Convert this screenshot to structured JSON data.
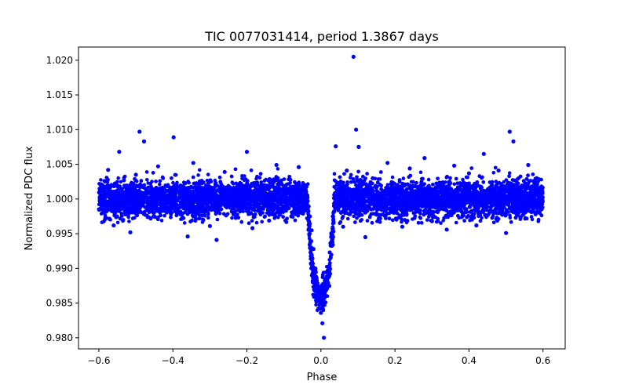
{
  "chart_data": {
    "type": "scatter",
    "title": "TIC 0077031414, period 1.3867 days",
    "xlabel": "Phase",
    "ylabel": "Normalized PDC flux",
    "xlim": [
      -0.655,
      0.66
    ],
    "ylim": [
      0.9784,
      1.0219
    ],
    "xticks": [
      -0.6,
      -0.4,
      -0.2,
      0.0,
      0.2,
      0.4,
      0.6
    ],
    "xtick_labels": [
      "−0.6",
      "−0.4",
      "−0.2",
      "0.0",
      "0.2",
      "0.4",
      "0.6"
    ],
    "yticks": [
      0.98,
      0.985,
      0.99,
      0.995,
      1.0,
      1.005,
      1.01,
      1.015,
      1.02
    ],
    "ytick_labels": [
      "0.980",
      "0.985",
      "0.990",
      "0.995",
      "1.000",
      "1.005",
      "1.010",
      "1.015",
      "1.020"
    ],
    "grid": false,
    "legend": "none",
    "marker_color": "#0000ff",
    "series": [
      {
        "description_note": "",
        "points": [
          [
            -0.598,
            1.0015
          ],
          [
            -0.59,
            0.9985
          ],
          [
            -0.575,
            1.0042
          ],
          [
            -0.56,
            0.9962
          ],
          [
            -0.545,
            1.0068
          ],
          [
            -0.53,
            1.0008
          ],
          [
            -0.515,
            0.9952
          ],
          [
            -0.5,
            1.0035
          ],
          [
            -0.49,
            1.0097
          ],
          [
            -0.478,
            1.0083
          ],
          [
            -0.46,
            0.9972
          ],
          [
            -0.44,
            1.0047
          ],
          [
            -0.42,
            0.999
          ],
          [
            -0.398,
            1.0089
          ],
          [
            -0.38,
            0.9978
          ],
          [
            -0.36,
            0.9946
          ],
          [
            -0.345,
            1.0052
          ],
          [
            -0.32,
            1.0004
          ],
          [
            -0.3,
            0.9961
          ],
          [
            -0.282,
            0.9941
          ],
          [
            -0.26,
            1.0039
          ],
          [
            -0.24,
            1.0012
          ],
          [
            -0.22,
            0.9986
          ],
          [
            -0.2,
            1.0068
          ],
          [
            -0.185,
            0.9958
          ],
          [
            -0.16,
            1.0021
          ],
          [
            -0.14,
            0.9969
          ],
          [
            -0.12,
            1.0049
          ],
          [
            -0.1,
            1.0003
          ],
          [
            -0.08,
            0.9975
          ],
          [
            -0.06,
            1.0046
          ],
          [
            -0.04,
            0.9988
          ],
          [
            -0.035,
            0.999
          ],
          [
            -0.03,
            0.9975
          ],
          [
            -0.025,
            0.9955
          ],
          [
            -0.02,
            0.9928
          ],
          [
            -0.015,
            0.99
          ],
          [
            -0.012,
            0.9882
          ],
          [
            -0.008,
            0.9865
          ],
          [
            -0.004,
            0.9842
          ],
          [
            0.0,
            0.9836
          ],
          [
            0.004,
            0.9821
          ],
          [
            0.008,
            0.98
          ],
          [
            0.012,
            0.9851
          ],
          [
            0.016,
            0.9878
          ],
          [
            0.02,
            0.9901
          ],
          [
            0.024,
            0.9923
          ],
          [
            0.028,
            0.995
          ],
          [
            0.032,
            0.9975
          ],
          [
            0.036,
            0.999
          ],
          [
            0.04,
            1.0076
          ],
          [
            0.05,
            1.0012
          ],
          [
            0.06,
            0.996
          ],
          [
            0.07,
            1.0041
          ],
          [
            0.08,
            0.9985
          ],
          [
            0.088,
            1.0205
          ],
          [
            0.095,
            1.01
          ],
          [
            0.102,
            1.0075
          ],
          [
            0.12,
            0.9945
          ],
          [
            0.14,
            1.003
          ],
          [
            0.16,
            0.9972
          ],
          [
            0.18,
            1.0052
          ],
          [
            0.2,
            1.0006
          ],
          [
            0.22,
            0.996
          ],
          [
            0.24,
            1.0044
          ],
          [
            0.26,
            0.999
          ],
          [
            0.28,
            1.0059
          ],
          [
            0.3,
            0.9968
          ],
          [
            0.32,
            1.0018
          ],
          [
            0.34,
            0.9956
          ],
          [
            0.36,
            1.0048
          ],
          [
            0.38,
            0.9982
          ],
          [
            0.4,
            1.0037
          ],
          [
            0.42,
            0.9962
          ],
          [
            0.44,
            1.0065
          ],
          [
            0.46,
            0.9997
          ],
          [
            0.48,
            1.0041
          ],
          [
            0.5,
            0.9951
          ],
          [
            0.51,
            1.0097
          ],
          [
            0.52,
            1.0083
          ],
          [
            0.54,
            0.9974
          ],
          [
            0.56,
            1.0049
          ],
          [
            0.58,
            0.9978
          ],
          [
            0.595,
            1.0012
          ]
        ]
      }
    ]
  }
}
